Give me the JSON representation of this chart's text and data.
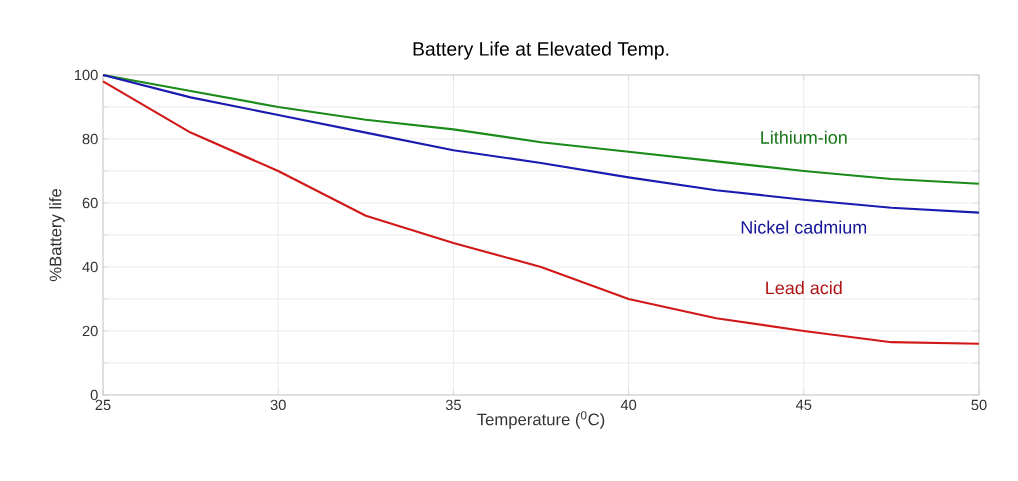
{
  "chart_data": {
    "type": "line",
    "title": "Battery Life at Elevated Temp.",
    "xlabel": "Temperature ($^{0}$C)",
    "ylabel": "%Battery life",
    "x": [
      25,
      27.5,
      30,
      32.5,
      35,
      37.5,
      40,
      42.5,
      45,
      47.5,
      50
    ],
    "series": [
      {
        "name": "Lithium-ion",
        "color": "#1a8a1a",
        "values": [
          100,
          95,
          90,
          86,
          83,
          79,
          76,
          73,
          70,
          67.5,
          66
        ]
      },
      {
        "name": "Nickel cadmium",
        "color": "#1a1ab0",
        "values": [
          100,
          93,
          87.5,
          82,
          76.5,
          72.5,
          68,
          64,
          61,
          58.5,
          57
        ]
      },
      {
        "name": "Lead acid",
        "color": "#d01818",
        "values": [
          98,
          82,
          70,
          56,
          47.5,
          40,
          30,
          24,
          20,
          16.5,
          16
        ]
      }
    ],
    "xlim": [
      25,
      50
    ],
    "xticks": [
      25,
      30,
      35,
      40,
      45,
      50
    ],
    "ylim": [
      0,
      100
    ],
    "yticks": [
      0,
      {
        "value": 10,
        "label": null
      },
      20,
      {
        "value": 30,
        "label": null
      },
      40,
      {
        "value": 50,
        "label": null
      },
      60,
      {
        "value": 70,
        "label": null
      },
      80,
      {
        "value": 90,
        "label": null
      },
      100
    ],
    "grid": true,
    "legend": false,
    "marker": "none",
    "line_style": "solid"
  }
}
